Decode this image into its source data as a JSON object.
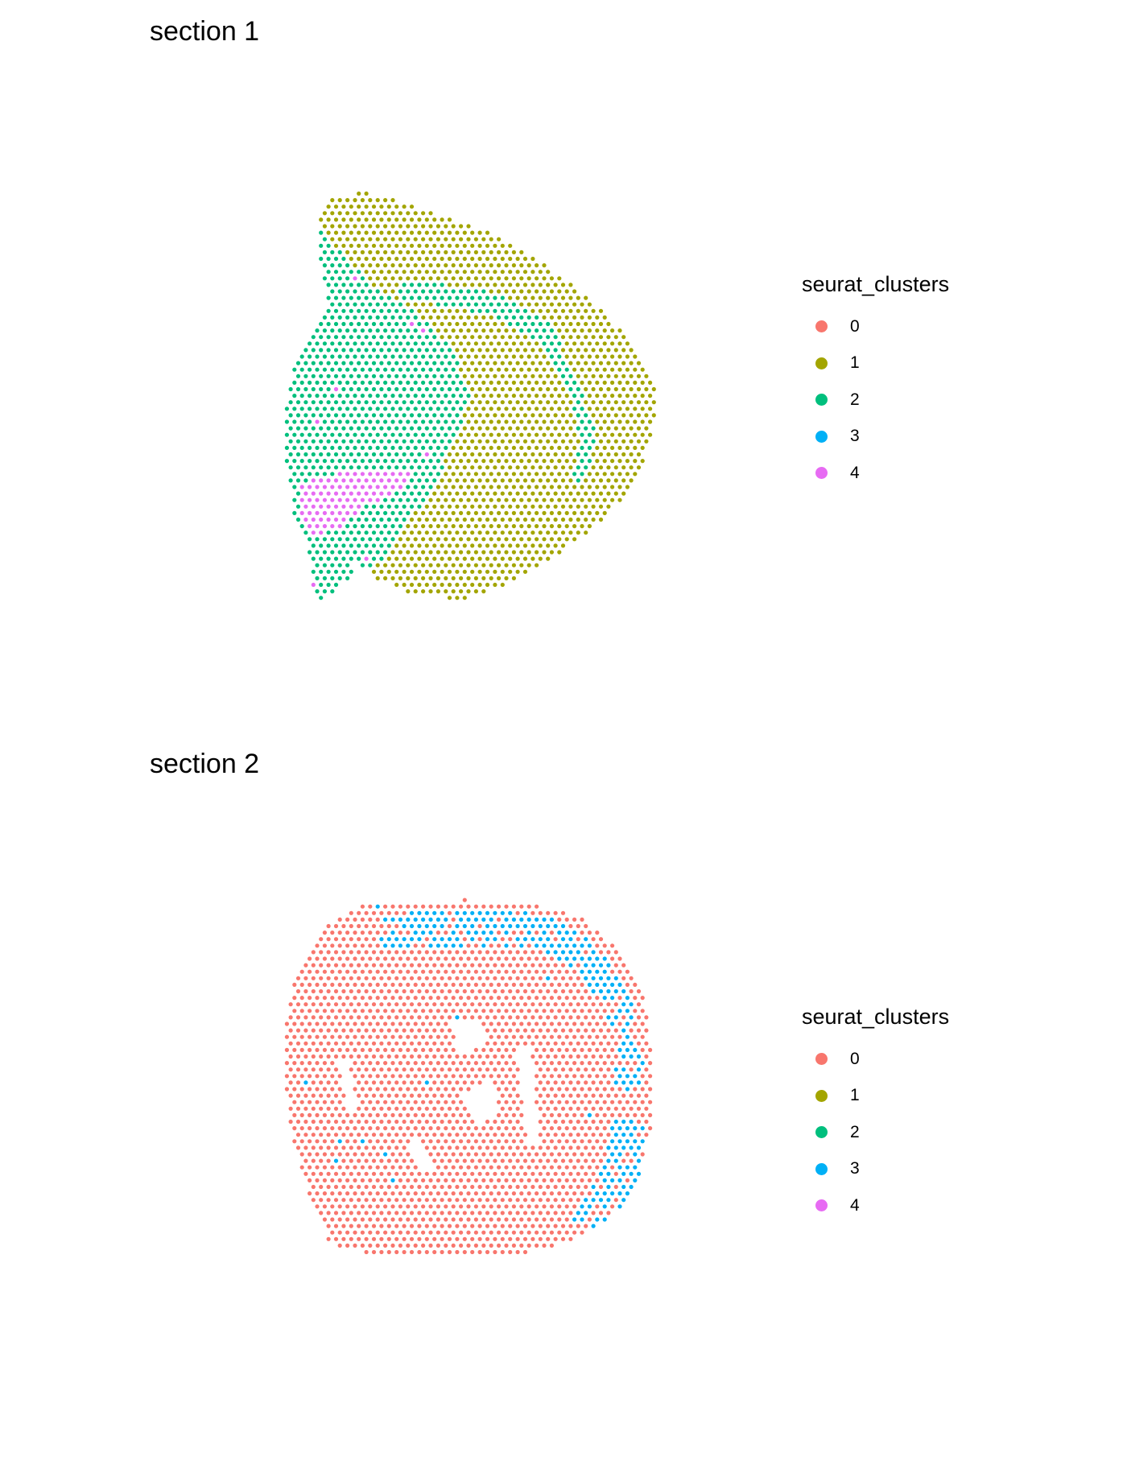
{
  "chart_data": [
    {
      "type": "scatter",
      "title": "section 1",
      "legend": {
        "title": "seurat_clusters",
        "position": "right",
        "entries": [
          {
            "label": "0",
            "color": "#F8766D"
          },
          {
            "label": "1",
            "color": "#A3A500"
          },
          {
            "label": "2",
            "color": "#00BF7D"
          },
          {
            "label": "3",
            "color": "#00B0F6"
          },
          {
            "label": "4",
            "color": "#E76BF3"
          }
        ]
      },
      "series": [
        {
          "name": "1",
          "cluster": "1",
          "color": "#A3A500"
        },
        {
          "name": "2",
          "cluster": "2",
          "color": "#00BF7D"
        },
        {
          "name": "4",
          "cluster": "4",
          "color": "#E76BF3"
        }
      ],
      "grid": false,
      "axes_visible": false
    },
    {
      "type": "scatter",
      "title": "section 2",
      "legend": {
        "title": "seurat_clusters",
        "position": "right",
        "entries": [
          {
            "label": "0",
            "color": "#F8766D"
          },
          {
            "label": "1",
            "color": "#A3A500"
          },
          {
            "label": "2",
            "color": "#00BF7D"
          },
          {
            "label": "3",
            "color": "#00B0F6"
          },
          {
            "label": "4",
            "color": "#E76BF3"
          }
        ]
      },
      "series": [
        {
          "name": "0",
          "cluster": "0",
          "color": "#F8766D"
        },
        {
          "name": "3",
          "cluster": "3",
          "color": "#00B0F6"
        }
      ],
      "grid": false,
      "axes_visible": false
    }
  ]
}
